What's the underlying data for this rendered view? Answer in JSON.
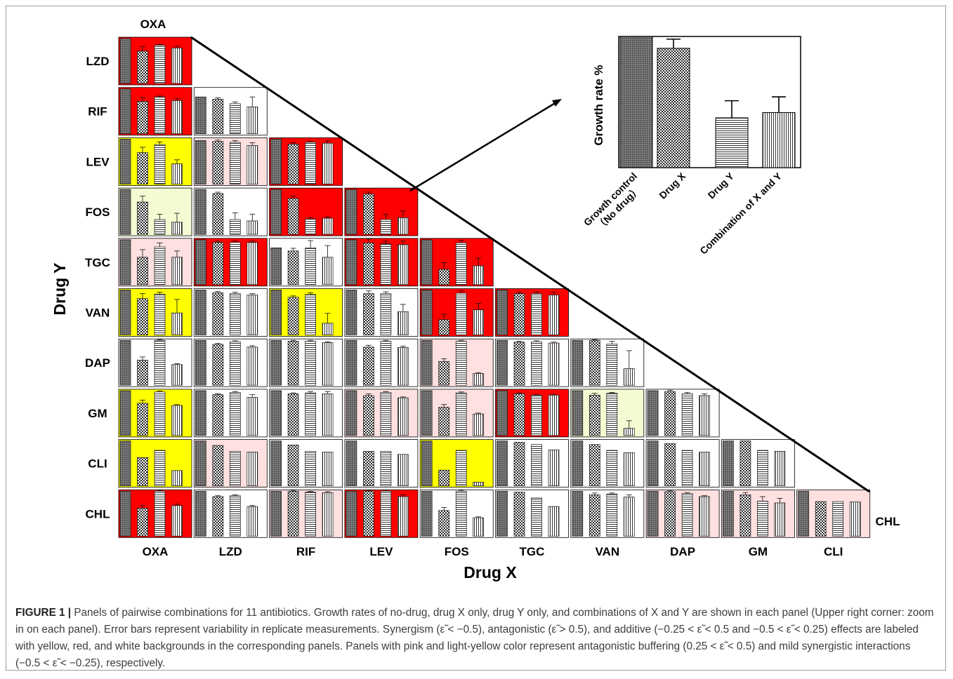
{
  "chart_data": {
    "type": "bar",
    "description": "Lower-triangular grid of small bar panels; each panel shows growth rate % of [growth control, drug X, drug Y, combination of X and Y]. Panel background encodes interaction class.",
    "drugs": [
      "OXA",
      "LZD",
      "RIF",
      "LEV",
      "FOS",
      "TGC",
      "VAN",
      "DAP",
      "GM",
      "CLI",
      "CHL"
    ],
    "x_axis_title": "Drug X",
    "y_axis_title": "Drug Y",
    "x_labels": [
      "OXA",
      "LZD",
      "RIF",
      "LEV",
      "FOS",
      "TGC",
      "VAN",
      "DAP",
      "GM",
      "CLI"
    ],
    "y_labels": [
      "LZD",
      "RIF",
      "LEV",
      "FOS",
      "TGC",
      "VAN",
      "DAP",
      "GM",
      "CLI",
      "CHL"
    ],
    "top_label": "OXA",
    "right_label": "CHL",
    "background_colors": {
      "red": "#ff0000",
      "yellow": "#ffff00",
      "white": "#ffffff",
      "pink": "#fde0df",
      "lightyellow": "#f4fbd2"
    },
    "panels": [
      {
        "x": "OXA",
        "y": "LZD",
        "bg": "red",
        "values": [
          100,
          72,
          85,
          79
        ],
        "err": [
          0,
          10,
          2,
          4
        ]
      },
      {
        "x": "OXA",
        "y": "RIF",
        "bg": "red",
        "values": [
          100,
          72,
          82,
          74
        ],
        "err": [
          0,
          9,
          2,
          5
        ]
      },
      {
        "x": "LZD",
        "y": "RIF",
        "bg": "white",
        "values": [
          82,
          77,
          67,
          60
        ],
        "err": [
          0,
          3,
          4,
          22
        ]
      },
      {
        "x": "OXA",
        "y": "LEV",
        "bg": "yellow",
        "values": [
          100,
          70,
          88,
          45
        ],
        "err": [
          0,
          12,
          6,
          9
        ]
      },
      {
        "x": "LZD",
        "y": "LEV",
        "bg": "pink",
        "values": [
          97,
          95,
          93,
          86
        ],
        "err": [
          0,
          3,
          4,
          6
        ]
      },
      {
        "x": "RIF",
        "y": "LEV",
        "bg": "red",
        "values": [
          100,
          89,
          93,
          91
        ],
        "err": [
          0,
          3,
          2,
          5
        ]
      },
      {
        "x": "OXA",
        "y": "FOS",
        "bg": "lightyellow",
        "values": [
          100,
          72,
          33,
          27
        ],
        "err": [
          0,
          13,
          12,
          20
        ]
      },
      {
        "x": "LZD",
        "y": "FOS",
        "bg": "white",
        "values": [
          100,
          91,
          33,
          30
        ],
        "err": [
          0,
          3,
          15,
          15
        ]
      },
      {
        "x": "RIF",
        "y": "FOS",
        "bg": "red",
        "values": [
          100,
          80,
          34,
          36
        ],
        "err": [
          0,
          5,
          3,
          3
        ]
      },
      {
        "x": "LEV",
        "y": "FOS",
        "bg": "red",
        "values": [
          100,
          90,
          33,
          37
        ],
        "err": [
          0,
          4,
          12,
          15
        ]
      },
      {
        "x": "OXA",
        "y": "TGC",
        "bg": "pink",
        "values": [
          100,
          61,
          84,
          61
        ],
        "err": [
          0,
          17,
          9,
          14
        ]
      },
      {
        "x": "LZD",
        "y": "TGC",
        "bg": "red",
        "values": [
          100,
          94,
          94,
          94
        ],
        "err": [
          0,
          3,
          3,
          3
        ]
      },
      {
        "x": "RIF",
        "y": "TGC",
        "bg": "white",
        "values": [
          82,
          75,
          82,
          61
        ],
        "err": [
          0,
          6,
          16,
          26
        ]
      },
      {
        "x": "LEV",
        "y": "TGC",
        "bg": "red",
        "values": [
          100,
          93,
          91,
          89
        ],
        "err": [
          0,
          9,
          6,
          8
        ]
      },
      {
        "x": "FOS",
        "y": "TGC",
        "bg": "red",
        "values": [
          100,
          34,
          93,
          42
        ],
        "err": [
          0,
          15,
          6,
          17
        ]
      },
      {
        "x": "OXA",
        "y": "VAN",
        "bg": "yellow",
        "values": [
          100,
          81,
          91,
          49
        ],
        "err": [
          0,
          11,
          4,
          30
        ]
      },
      {
        "x": "LZD",
        "y": "VAN",
        "bg": "white",
        "values": [
          100,
          94,
          92,
          89
        ],
        "err": [
          0,
          3,
          3,
          3
        ]
      },
      {
        "x": "RIF",
        "y": "VAN",
        "bg": "yellow",
        "values": [
          100,
          84,
          90,
          26
        ],
        "err": [
          0,
          3,
          4,
          22
        ]
      },
      {
        "x": "LEV",
        "y": "VAN",
        "bg": "white",
        "values": [
          100,
          92,
          92,
          52
        ],
        "err": [
          0,
          6,
          4,
          16
        ]
      },
      {
        "x": "FOS",
        "y": "VAN",
        "bg": "red",
        "values": [
          100,
          34,
          93,
          56
        ],
        "err": [
          0,
          12,
          5,
          14
        ]
      },
      {
        "x": "TGC",
        "y": "VAN",
        "bg": "red",
        "values": [
          100,
          92,
          92,
          89
        ],
        "err": [
          0,
          3,
          4,
          6
        ]
      },
      {
        "x": "OXA",
        "y": "DAP",
        "bg": "white",
        "values": [
          100,
          56,
          100,
          46
        ],
        "err": [
          0,
          7,
          2,
          2
        ]
      },
      {
        "x": "LZD",
        "y": "DAP",
        "bg": "white",
        "values": [
          100,
          91,
          97,
          85
        ],
        "err": [
          0,
          2,
          2,
          3
        ]
      },
      {
        "x": "RIF",
        "y": "DAP",
        "bg": "white",
        "values": [
          100,
          98,
          98,
          95
        ],
        "err": [
          0,
          2,
          2,
          2
        ]
      },
      {
        "x": "LEV",
        "y": "DAP",
        "bg": "white",
        "values": [
          100,
          85,
          98,
          84
        ],
        "err": [
          0,
          4,
          2,
          3
        ]
      },
      {
        "x": "FOS",
        "y": "DAP",
        "bg": "pink",
        "values": [
          100,
          53,
          98,
          26
        ],
        "err": [
          0,
          6,
          2,
          2
        ]
      },
      {
        "x": "TGC",
        "y": "DAP",
        "bg": "white",
        "values": [
          100,
          96,
          97,
          94
        ],
        "err": [
          0,
          2,
          2,
          2
        ]
      },
      {
        "x": "VAN",
        "y": "DAP",
        "bg": "white",
        "values": [
          100,
          100,
          92,
          37
        ],
        "err": [
          0,
          2,
          6,
          40
        ]
      },
      {
        "x": "OXA",
        "y": "GM",
        "bg": "yellow",
        "values": [
          100,
          72,
          97,
          67
        ],
        "err": [
          0,
          7,
          2,
          2
        ]
      },
      {
        "x": "LZD",
        "y": "GM",
        "bg": "white",
        "values": [
          100,
          91,
          96,
          85
        ],
        "err": [
          0,
          2,
          2,
          6
        ]
      },
      {
        "x": "RIF",
        "y": "GM",
        "bg": "white",
        "values": [
          100,
          93,
          95,
          93
        ],
        "err": [
          0,
          2,
          3,
          5
        ]
      },
      {
        "x": "LEV",
        "y": "GM",
        "bg": "pink",
        "values": [
          100,
          89,
          96,
          84
        ],
        "err": [
          0,
          4,
          2,
          2
        ]
      },
      {
        "x": "FOS",
        "y": "GM",
        "bg": "pink",
        "values": [
          100,
          63,
          95,
          48
        ],
        "err": [
          0,
          6,
          2,
          2
        ]
      },
      {
        "x": "TGC",
        "y": "GM",
        "bg": "red",
        "values": [
          100,
          93,
          90,
          90
        ],
        "err": [
          0,
          2,
          2,
          2
        ]
      },
      {
        "x": "VAN",
        "y": "GM",
        "bg": "lightyellow",
        "values": [
          100,
          90,
          94,
          16
        ],
        "err": [
          0,
          4,
          2,
          17
        ]
      },
      {
        "x": "DAP",
        "y": "GM",
        "bg": "white",
        "values": [
          100,
          98,
          93,
          89
        ],
        "err": [
          0,
          3,
          3,
          4
        ]
      },
      {
        "x": "OXA",
        "y": "CLI",
        "bg": "yellow",
        "values": [
          100,
          63,
          79,
          34
        ],
        "err": [
          0,
          0,
          0,
          0
        ]
      },
      {
        "x": "LZD",
        "y": "CLI",
        "bg": "pink",
        "values": [
          100,
          90,
          77,
          75
        ],
        "err": [
          0,
          0,
          0,
          0
        ]
      },
      {
        "x": "RIF",
        "y": "CLI",
        "bg": "white",
        "values": [
          100,
          91,
          77,
          75
        ],
        "err": [
          0,
          0,
          0,
          0
        ]
      },
      {
        "x": "LEV",
        "y": "CLI",
        "bg": "white",
        "values": [
          100,
          77,
          77,
          70
        ],
        "err": [
          0,
          0,
          0,
          0
        ]
      },
      {
        "x": "FOS",
        "y": "CLI",
        "bg": "yellow",
        "values": [
          100,
          35,
          79,
          8
        ],
        "err": [
          0,
          0,
          0,
          0
        ]
      },
      {
        "x": "TGC",
        "y": "CLI",
        "bg": "white",
        "values": [
          100,
          97,
          92,
          80
        ],
        "err": [
          0,
          0,
          0,
          0
        ]
      },
      {
        "x": "VAN",
        "y": "CLI",
        "bg": "white",
        "values": [
          100,
          92,
          79,
          74
        ],
        "err": [
          0,
          0,
          0,
          0
        ]
      },
      {
        "x": "DAP",
        "y": "CLI",
        "bg": "white",
        "values": [
          100,
          94,
          79,
          75
        ],
        "err": [
          0,
          0,
          0,
          0
        ]
      },
      {
        "x": "GM",
        "y": "CLI",
        "bg": "white",
        "values": [
          100,
          100,
          79,
          77
        ],
        "err": [
          0,
          0,
          0,
          0
        ]
      },
      {
        "x": "OXA",
        "y": "CHL",
        "bg": "red",
        "values": [
          100,
          62,
          100,
          68
        ],
        "err": [
          0,
          6,
          2,
          3
        ]
      },
      {
        "x": "LZD",
        "y": "CHL",
        "bg": "white",
        "values": [
          100,
          88,
          90,
          66
        ],
        "err": [
          0,
          2,
          2,
          2
        ]
      },
      {
        "x": "RIF",
        "y": "CHL",
        "bg": "pink",
        "values": [
          100,
          100,
          98,
          97
        ],
        "err": [
          0,
          2,
          2,
          2
        ]
      },
      {
        "x": "LEV",
        "y": "CHL",
        "bg": "red",
        "values": [
          100,
          100,
          100,
          88
        ],
        "err": [
          0,
          2,
          2,
          4
        ]
      },
      {
        "x": "FOS",
        "y": "CHL",
        "bg": "white",
        "values": [
          100,
          57,
          100,
          41
        ],
        "err": [
          0,
          7,
          2,
          2
        ]
      },
      {
        "x": "TGC",
        "y": "CHL",
        "bg": "white",
        "values": [
          100,
          98,
          85,
          66
        ],
        "err": [
          0,
          0,
          0,
          0
        ]
      },
      {
        "x": "VAN",
        "y": "CHL",
        "bg": "white",
        "values": [
          100,
          92,
          94,
          87
        ],
        "err": [
          0,
          4,
          2,
          5
        ]
      },
      {
        "x": "DAP",
        "y": "CHL",
        "bg": "pink",
        "values": [
          100,
          99,
          95,
          88
        ],
        "err": [
          0,
          2,
          2,
          2
        ]
      },
      {
        "x": "GM",
        "y": "CHL",
        "bg": "pink",
        "values": [
          100,
          92,
          78,
          74
        ],
        "err": [
          0,
          5,
          10,
          10
        ]
      },
      {
        "x": "CLI",
        "y": "CHL",
        "bg": "pink",
        "values": [
          100,
          77,
          77,
          76
        ],
        "err": [
          0,
          0,
          0,
          0
        ]
      }
    ],
    "inset": {
      "type": "bar",
      "ylabel": "Growth rate %",
      "categories": [
        "Growth control\n（No drug）",
        "Drug X",
        "Drug Y",
        "Combination of X and Y"
      ],
      "values": [
        100,
        91,
        38,
        42
      ],
      "err": [
        0,
        7,
        13,
        12
      ],
      "patterns": [
        "dark-checker",
        "checker",
        "horizontal",
        "vertical"
      ]
    }
  },
  "caption": {
    "label": "FIGURE 1 |",
    "text": " Panels of pairwise combinations for 11 antibiotics. Growth rates of no-drug, drug X only, drug Y only, and combinations of X and Y are shown in each panel (Upper right corner: zoom in on each panel). Error bars represent variability in replicate measurements. Synergism (ε̃  < −0.5), antagonistic (ε̃  > 0.5), and additive (−0.25 < ε̃  < 0.5 and −0.5 < ε̃  < 0.25) effects are labeled with yellow, red, and white backgrounds in the corresponding panels. Panels with pink and light-yellow color represent antagonistic buffering (0.25 < ε̃  < 0.5) and mild synergistic interactions (−0.5 < ε̃  < −0.25), respectively."
  }
}
